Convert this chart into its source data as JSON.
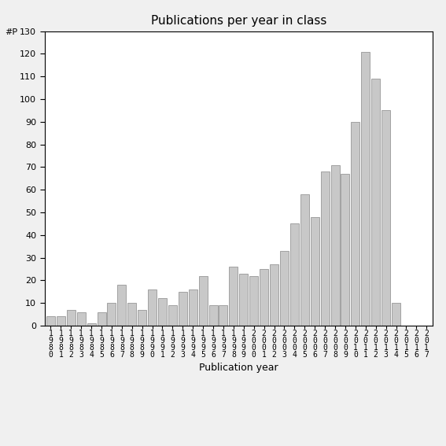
{
  "title": "Publications per year in class",
  "xlabel": "Publication year",
  "ylabel": "#P",
  "years": [
    "1980",
    "1981",
    "1982",
    "1983",
    "1984",
    "1985",
    "1986",
    "1987",
    "1988",
    "1989",
    "1990",
    "1991",
    "1992",
    "1993",
    "1994",
    "1995",
    "1996",
    "1997",
    "1998",
    "1999",
    "2000",
    "2001",
    "2002",
    "2003",
    "2004",
    "2005",
    "2006",
    "2007",
    "2008",
    "2009",
    "2010",
    "2011",
    "2012",
    "2013",
    "2014",
    "2015",
    "2016",
    "2017"
  ],
  "values": [
    4,
    4,
    7,
    6,
    1,
    6,
    10,
    18,
    10,
    7,
    16,
    12,
    9,
    15,
    16,
    22,
    9,
    9,
    26,
    23,
    22,
    25,
    27,
    33,
    45,
    58,
    48,
    68,
    71,
    67,
    90,
    121,
    109,
    95,
    10,
    0,
    0,
    0
  ],
  "ylim": [
    0,
    130
  ],
  "yticks": [
    0,
    10,
    20,
    30,
    40,
    50,
    60,
    70,
    80,
    90,
    100,
    110,
    120,
    130
  ],
  "bar_color": "#c8c8c8",
  "bar_edgecolor": "#888888",
  "bg_color": "#ffffff",
  "fig_bg_color": "#f0f0f0",
  "tick_fontsize": 7,
  "ylabel_fontsize": 8,
  "xlabel_fontsize": 9,
  "title_fontsize": 11
}
